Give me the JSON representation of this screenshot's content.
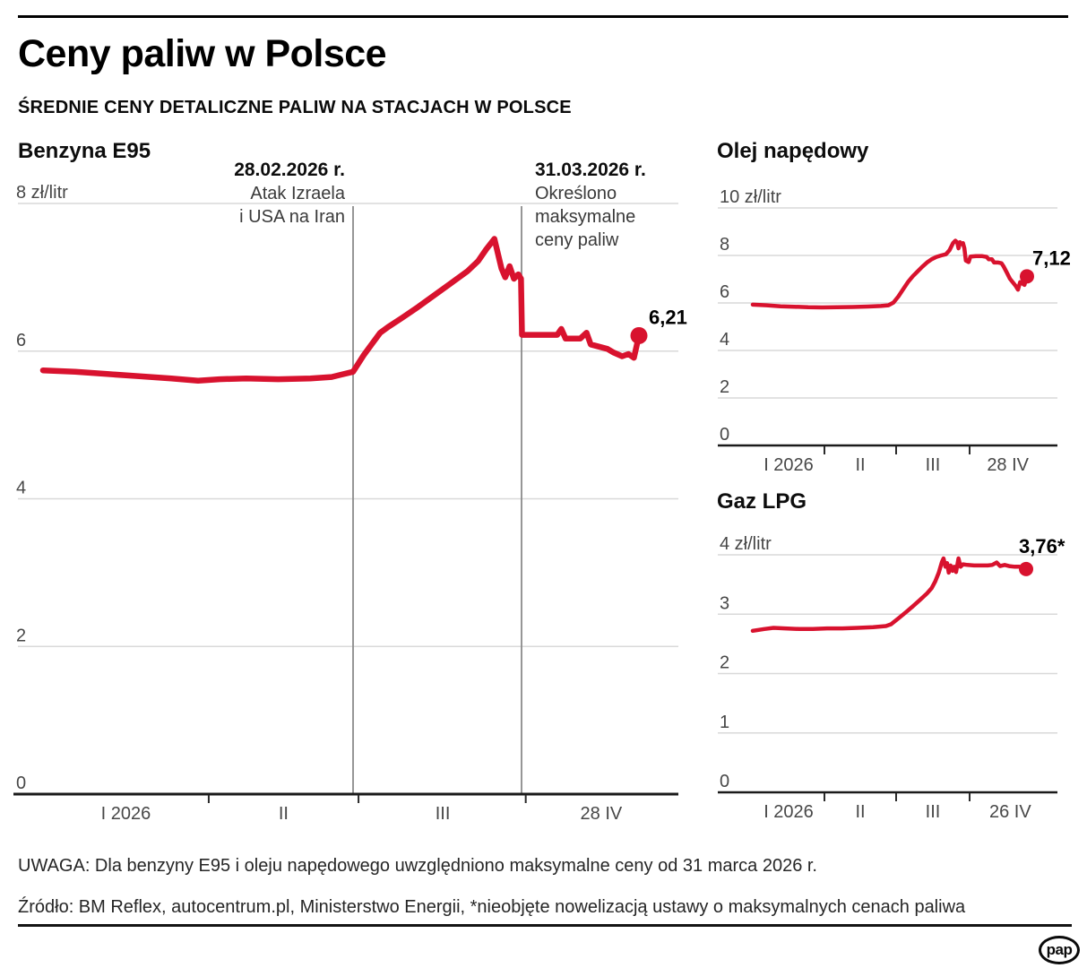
{
  "header": {
    "title": "Ceny paliw w Polsce",
    "subtitle": "ŚREDNIE CENY DETALICZNE PALIW NA STACJACH W POLSCE"
  },
  "colors": {
    "line": "#d8122e",
    "grid": "#d9d9d9",
    "axis": "#1a1a1a",
    "tick": "#2a2a2a",
    "annotation_line": "#8a8a8a"
  },
  "chart_data": [
    {
      "id": "benzyna",
      "type": "line",
      "title": "Benzyna E95",
      "ylabel_top": "8 zł/litr",
      "ylim": [
        0,
        8
      ],
      "yticks": [
        {
          "v": 0,
          "label": "0"
        },
        {
          "v": 2,
          "label": "2"
        },
        {
          "v": 4,
          "label": "4"
        },
        {
          "v": 6,
          "label": "6"
        },
        {
          "v": 8,
          "label": "8 zł/litr"
        }
      ],
      "xtick_days": [
        31,
        59,
        90
      ],
      "xlabels": [
        {
          "day": 15.5,
          "label": "I 2026"
        },
        {
          "day": 45,
          "label": "II"
        },
        {
          "day": 74.5,
          "label": "III"
        },
        {
          "day": 108,
          "label": "28 IV"
        }
      ],
      "annotations": [
        {
          "day": 58,
          "align": "right",
          "title": "28.02.2026 r.",
          "lines": [
            "Atak Izraela",
            "i USA na Iran"
          ]
        },
        {
          "day": 89,
          "align": "left",
          "title": "31.03.2026 r.",
          "lines": [
            "Określono",
            "maksymalne",
            "ceny paliw"
          ]
        }
      ],
      "end_label": "6,21",
      "end_value": 6.21,
      "series": [
        [
          0,
          5.74
        ],
        [
          6,
          5.72
        ],
        [
          12,
          5.69
        ],
        [
          18,
          5.66
        ],
        [
          24,
          5.63
        ],
        [
          29,
          5.6
        ],
        [
          33,
          5.62
        ],
        [
          38,
          5.63
        ],
        [
          44,
          5.62
        ],
        [
          50,
          5.63
        ],
        [
          54,
          5.65
        ],
        [
          58,
          5.72
        ],
        [
          60,
          5.95
        ],
        [
          61.5,
          6.1
        ],
        [
          63,
          6.25
        ],
        [
          64.5,
          6.33
        ],
        [
          67,
          6.45
        ],
        [
          70,
          6.6
        ],
        [
          73,
          6.76
        ],
        [
          76,
          6.92
        ],
        [
          79,
          7.08
        ],
        [
          81,
          7.22
        ],
        [
          82.5,
          7.38
        ],
        [
          84,
          7.52
        ],
        [
          85.3,
          7.12
        ],
        [
          86,
          7.0
        ],
        [
          86.8,
          7.15
        ],
        [
          87.6,
          6.98
        ],
        [
          88.4,
          7.04
        ],
        [
          88.9,
          6.98
        ],
        [
          89.1,
          6.22
        ],
        [
          93,
          6.22
        ],
        [
          97.5,
          6.22
        ],
        [
          98.5,
          6.3
        ],
        [
          99.5,
          6.17
        ],
        [
          103,
          6.17
        ],
        [
          104.5,
          6.25
        ],
        [
          105.5,
          6.09
        ],
        [
          107.5,
          6.06
        ],
        [
          109.5,
          6.03
        ],
        [
          111,
          5.98
        ],
        [
          113,
          5.93
        ],
        [
          114.5,
          5.96
        ],
        [
          115.8,
          5.91
        ],
        [
          117,
          6.21
        ]
      ]
    },
    {
      "id": "diesel",
      "type": "line",
      "title": "Olej napędowy",
      "ylabel_top": "10 zł/litr",
      "ylim": [
        0,
        10
      ],
      "yticks": [
        {
          "v": 0,
          "label": "0"
        },
        {
          "v": 2,
          "label": "2"
        },
        {
          "v": 4,
          "label": "4"
        },
        {
          "v": 6,
          "label": "6"
        },
        {
          "v": 8,
          "label": "8"
        },
        {
          "v": 10,
          "label": "10 zł/litr"
        }
      ],
      "xtick_days": [
        31,
        59,
        90
      ],
      "xlabels": [
        {
          "day": 15.5,
          "label": "I 2026"
        },
        {
          "day": 45,
          "label": "II"
        },
        {
          "day": 74.5,
          "label": "III"
        },
        {
          "day": 108,
          "label": "28 IV"
        }
      ],
      "annotations": [],
      "end_label": "7,12",
      "end_value": 7.12,
      "series": [
        [
          0,
          5.93
        ],
        [
          6,
          5.9
        ],
        [
          12,
          5.86
        ],
        [
          18,
          5.84
        ],
        [
          24,
          5.82
        ],
        [
          30,
          5.81
        ],
        [
          36,
          5.82
        ],
        [
          42,
          5.83
        ],
        [
          48,
          5.85
        ],
        [
          53,
          5.87
        ],
        [
          56,
          5.9
        ],
        [
          58,
          6.02
        ],
        [
          60,
          6.28
        ],
        [
          62,
          6.58
        ],
        [
          64,
          6.88
        ],
        [
          66,
          7.12
        ],
        [
          68,
          7.32
        ],
        [
          70,
          7.52
        ],
        [
          72,
          7.7
        ],
        [
          74,
          7.84
        ],
        [
          76,
          7.94
        ],
        [
          78,
          8.0
        ],
        [
          80,
          8.05
        ],
        [
          81.5,
          8.22
        ],
        [
          83,
          8.52
        ],
        [
          84,
          8.62
        ],
        [
          84.8,
          8.55
        ],
        [
          85.3,
          8.3
        ],
        [
          85.9,
          8.56
        ],
        [
          86.6,
          8.48
        ],
        [
          87.2,
          8.52
        ],
        [
          87.8,
          8.3
        ],
        [
          88.4,
          7.78
        ],
        [
          89.6,
          7.72
        ],
        [
          90.4,
          7.95
        ],
        [
          93,
          7.97
        ],
        [
          96,
          7.97
        ],
        [
          98,
          7.94
        ],
        [
          99,
          7.84
        ],
        [
          100.5,
          7.84
        ],
        [
          101.5,
          7.7
        ],
        [
          103.5,
          7.7
        ],
        [
          105,
          7.67
        ],
        [
          106,
          7.54
        ],
        [
          107.5,
          7.28
        ],
        [
          109,
          7.02
        ],
        [
          110.5,
          6.85
        ],
        [
          111.8,
          6.7
        ],
        [
          112.8,
          6.56
        ],
        [
          113.8,
          6.88
        ],
        [
          114.8,
          6.82
        ],
        [
          115.8,
          6.76
        ],
        [
          117,
          7.12
        ]
      ]
    },
    {
      "id": "lpg",
      "type": "line",
      "title": "Gaz LPG",
      "ylabel_top": "4 zł/litr",
      "ylim": [
        0,
        4
      ],
      "yticks": [
        {
          "v": 0,
          "label": "0"
        },
        {
          "v": 1,
          "label": "1"
        },
        {
          "v": 2,
          "label": "2"
        },
        {
          "v": 3,
          "label": "3"
        },
        {
          "v": 4,
          "label": "4 zł/litr"
        }
      ],
      "xtick_days": [
        31,
        59,
        90
      ],
      "xlabels": [
        {
          "day": 15.5,
          "label": "I 2026"
        },
        {
          "day": 45,
          "label": "II"
        },
        {
          "day": 74.5,
          "label": "III"
        },
        {
          "day": 108,
          "label": "26 IV"
        }
      ],
      "annotations": [],
      "end_label": "3,76*",
      "end_value": 3.76,
      "series": [
        [
          0,
          2.72
        ],
        [
          5,
          2.75
        ],
        [
          9,
          2.77
        ],
        [
          14,
          2.76
        ],
        [
          20,
          2.75
        ],
        [
          26,
          2.75
        ],
        [
          32,
          2.76
        ],
        [
          38,
          2.76
        ],
        [
          44,
          2.77
        ],
        [
          50,
          2.78
        ],
        [
          55,
          2.8
        ],
        [
          57,
          2.83
        ],
        [
          60,
          2.93
        ],
        [
          63,
          3.03
        ],
        [
          66,
          3.13
        ],
        [
          69,
          3.24
        ],
        [
          72,
          3.35
        ],
        [
          74,
          3.44
        ],
        [
          75.5,
          3.55
        ],
        [
          77,
          3.7
        ],
        [
          78.3,
          3.88
        ],
        [
          79,
          3.94
        ],
        [
          79.8,
          3.8
        ],
        [
          80.5,
          3.86
        ],
        [
          81.2,
          3.7
        ],
        [
          82,
          3.82
        ],
        [
          82.8,
          3.73
        ],
        [
          83.5,
          3.8
        ],
        [
          84.3,
          3.71
        ],
        [
          85.3,
          3.94
        ],
        [
          86.2,
          3.8
        ],
        [
          87.2,
          3.84
        ],
        [
          89,
          3.83
        ],
        [
          92,
          3.82
        ],
        [
          95,
          3.82
        ],
        [
          98,
          3.82
        ],
        [
          100,
          3.83
        ],
        [
          102,
          3.87
        ],
        [
          103.5,
          3.81
        ],
        [
          105.5,
          3.83
        ],
        [
          107.5,
          3.81
        ],
        [
          110,
          3.8
        ],
        [
          112,
          3.8
        ],
        [
          113.5,
          3.78
        ],
        [
          115,
          3.76
        ]
      ]
    }
  ],
  "footer": {
    "note": "UWAGA: Dla benzyny E95 i oleju napędowego uwzględniono maksymalne ceny od 31 marca 2026 r.",
    "source": "Źródło: BM Reflex, autocentrum.pl, Ministerstwo Energii, *nieobjęte nowelizacją ustawy o maksymalnych cenach paliwa",
    "logo_text": "pap"
  }
}
